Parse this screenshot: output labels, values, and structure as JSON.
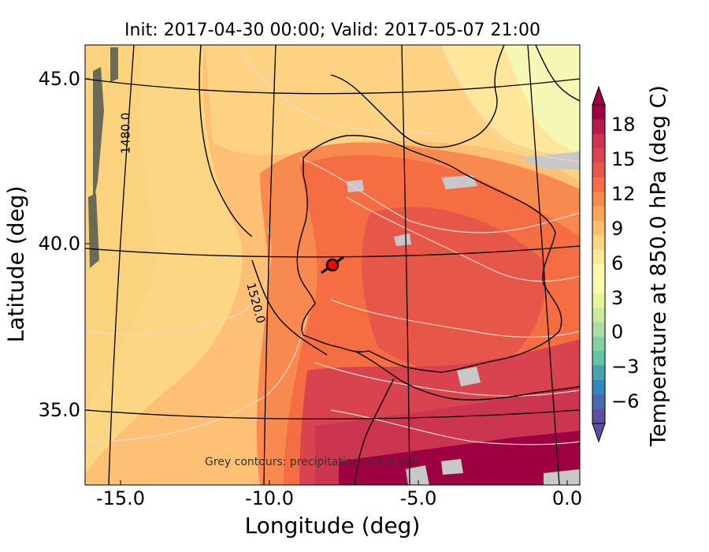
{
  "title": "Init: 2017-04-30 00:00; Valid: 2017-05-07 21:00",
  "axes": {
    "xlabel": "Longitude (deg)",
    "ylabel": "Latitude (deg)",
    "xticks": [
      "-15.0",
      "-10.0",
      "-5.0",
      "0.0"
    ],
    "yticks": [
      "45.0",
      "40.0",
      "35.0"
    ]
  },
  "colorbar": {
    "label": "Temperature at 850.0 hPa (deg C)",
    "ticks": [
      "18",
      "15",
      "12",
      "9",
      "6",
      "3",
      "0",
      "−3",
      "−6"
    ],
    "colors": [
      "#9e0142",
      "#b51a49",
      "#cc3550",
      "#d8434f",
      "#e6574a",
      "#f46d43",
      "#f88a50",
      "#fba55e",
      "#fdbe6f",
      "#fdd683",
      "#fee897",
      "#fff7b0",
      "#f6fbb0",
      "#e6f598",
      "#cdeb9d",
      "#abdda4",
      "#86cfa5",
      "#66c2a5",
      "#4ba0b1",
      "#3288bd",
      "#4a6ab0",
      "#5e4fa2"
    ]
  },
  "annotations": {
    "contour_1480": "1480.0",
    "contour_1520": "1520.0",
    "precip_note": "Grey contours: precipitation > 0.5 mm"
  },
  "colors": {
    "point_marker": "#ff0000",
    "precip": "#c8c8c8"
  }
}
